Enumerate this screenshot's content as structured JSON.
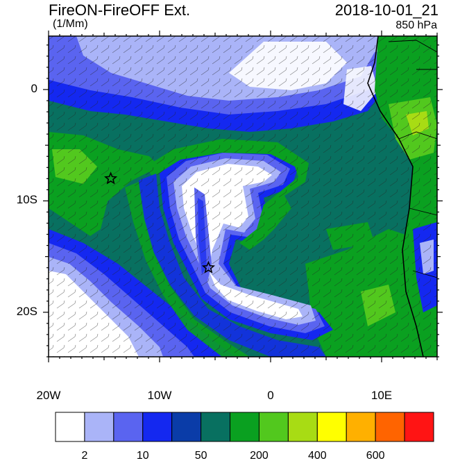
{
  "header": {
    "title": "FireON-FireOFF Ext.",
    "units": "(1/Mm)",
    "datetime": "2018-10-01_21",
    "level": "850 hPa"
  },
  "axes": {
    "lat_labels": [
      "0",
      "10S",
      "20S"
    ],
    "lon_labels": [
      "20W",
      "10W",
      "0",
      "10E"
    ]
  },
  "colorbar": {
    "colors": [
      "#ffffff",
      "#aab4f8",
      "#5a64f0",
      "#1428f0",
      "#0a3ca8",
      "#087060",
      "#0aa020",
      "#52c81e",
      "#a8dc14",
      "#ffff00",
      "#ffb000",
      "#ff6400",
      "#ff1414"
    ],
    "labels": [
      "2",
      "10",
      "50",
      "200",
      "400",
      "600"
    ]
  },
  "markers": [
    {
      "name": "star-marker-west",
      "lon": -14.4,
      "lat": -8.0
    },
    {
      "name": "star-marker-central",
      "lon": -5.6,
      "lat": -16.0
    }
  ]
}
